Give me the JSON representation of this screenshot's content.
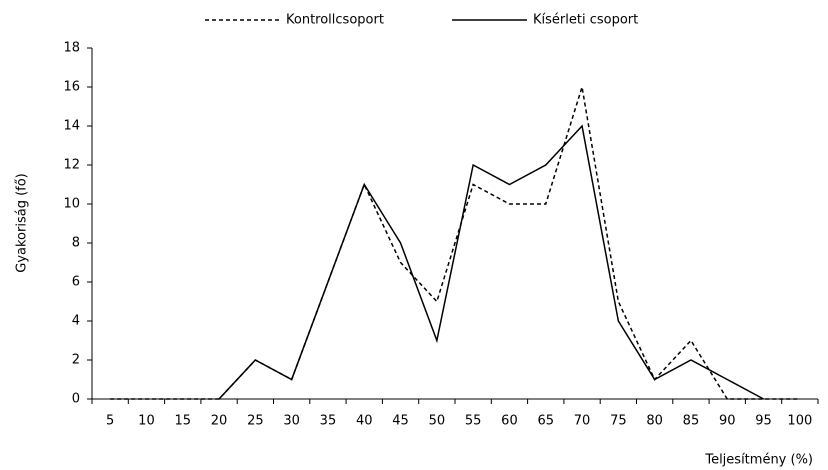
{
  "chart_data": {
    "type": "line",
    "x_label": "Teljesítmény (%)",
    "y_label": "Gyakoriság (fő)",
    "categories": [
      "5",
      "10",
      "15",
      "20",
      "25",
      "30",
      "35",
      "40",
      "45",
      "50",
      "55",
      "60",
      "65",
      "70",
      "75",
      "80",
      "85",
      "90",
      "95",
      "100"
    ],
    "series": [
      {
        "name": "Kontrollcsoport",
        "color": "#000000",
        "dash": true,
        "values": [
          0,
          0,
          0,
          0,
          2,
          1,
          6,
          11,
          7,
          5,
          11,
          10,
          10,
          16,
          5,
          1,
          3,
          0,
          0,
          0
        ]
      },
      {
        "name": "Kísérleti csoport",
        "color": "#000000",
        "dash": false,
        "values": [
          null,
          null,
          null,
          0,
          2,
          1,
          6,
          11,
          8,
          3,
          12,
          11,
          12,
          14,
          4,
          1,
          2,
          1,
          0,
          null
        ]
      }
    ],
    "ylim": [
      0,
      18
    ],
    "yticks": [
      0,
      2,
      4,
      6,
      8,
      10,
      12,
      14,
      16,
      18
    ],
    "grid": false,
    "legend": "top"
  }
}
